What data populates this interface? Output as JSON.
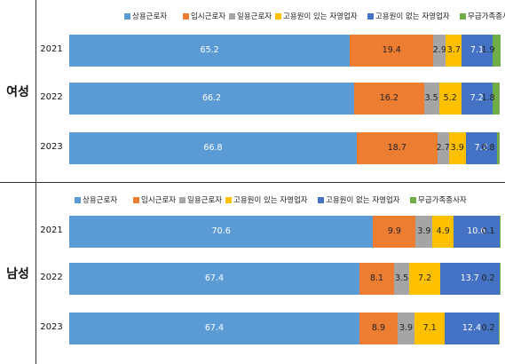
{
  "colors": {
    "regular": "#5B9BD5",
    "temporary": "#ED7D31",
    "daily": "#A5A5A5",
    "self_with": "#FFC000",
    "self_without": "#4472C4",
    "unpaid": "#70AD47"
  },
  "chart_data": [
    {
      "type": "bar",
      "orientation": "horizontal",
      "stacked": true,
      "panel_label": "여성",
      "legend": "top",
      "grid": false,
      "xlim": [
        0,
        100
      ],
      "categories": [
        "2021",
        "2022",
        "2023"
      ],
      "series": [
        {
          "name": "상용근로자",
          "values": [
            65.2,
            66.2,
            66.8
          ],
          "labels": [
            "65.2",
            "66.2",
            "66.8"
          ]
        },
        {
          "name": "임시근로자",
          "values": [
            19.4,
            16.2,
            18.7
          ],
          "labels": [
            "19.4",
            "16.2",
            "18.7"
          ]
        },
        {
          "name": "일용근로자",
          "values": [
            2.9,
            3.5,
            2.7
          ],
          "labels": [
            "2.9",
            "3.5",
            "2.7"
          ]
        },
        {
          "name": "고용원이 있는 자영업자",
          "values": [
            3.7,
            5.2,
            3.9
          ],
          "labels": [
            "3.7",
            "5.2",
            "3.9"
          ]
        },
        {
          "name": "고용원이 없는 자영업자",
          "values": [
            7.1,
            7.2,
            7.2
          ],
          "labels": [
            "7.1",
            "7.2",
            "7.2"
          ]
        },
        {
          "name": "무급가족종사자",
          "values": [
            1.9,
            1.8,
            0.8
          ],
          "labels": [
            "1.9",
            "1.8",
            "0.8"
          ]
        }
      ]
    },
    {
      "type": "bar",
      "orientation": "horizontal",
      "stacked": true,
      "panel_label": "남성",
      "legend": "top",
      "grid": false,
      "xlim": [
        0,
        100
      ],
      "categories": [
        "2021",
        "2022",
        "2023"
      ],
      "series": [
        {
          "name": "상용근로자",
          "values": [
            70.6,
            67.4,
            67.4
          ],
          "labels": [
            "70.6",
            "67.4",
            "67.4"
          ]
        },
        {
          "name": "임시근로자",
          "values": [
            9.9,
            8.1,
            8.9
          ],
          "labels": [
            "9.9",
            "8.1",
            "8.9"
          ]
        },
        {
          "name": "일용근로자",
          "values": [
            3.9,
            3.5,
            3.9
          ],
          "labels": [
            "3.9",
            "3.5",
            "3.9"
          ]
        },
        {
          "name": "고용원이 있는 자영업자",
          "values": [
            4.9,
            7.2,
            7.1
          ],
          "labels": [
            "4.9",
            "7.2",
            "7.1"
          ]
        },
        {
          "name": "고용원이 없는 자영업자",
          "values": [
            10.6,
            13.7,
            12.4
          ],
          "labels": [
            "10.6",
            "13.7",
            "12.4"
          ]
        },
        {
          "name": "무급가족종사자",
          "values": [
            0.1,
            0.2,
            0.2
          ],
          "labels": [
            "0.1",
            "0.2",
            "0.2"
          ]
        }
      ]
    }
  ]
}
